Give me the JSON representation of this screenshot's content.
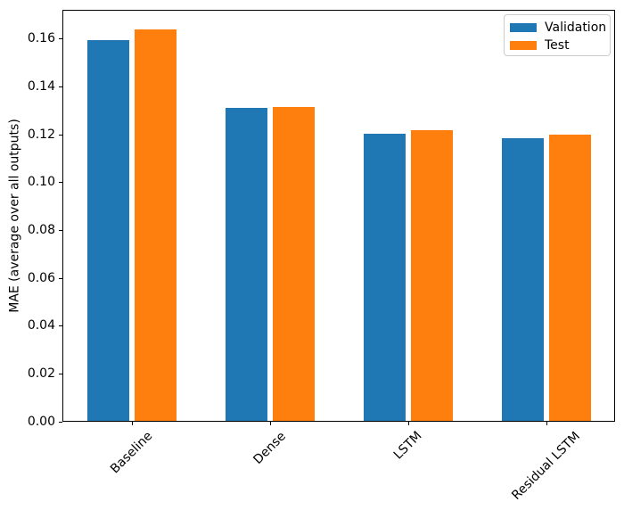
{
  "chart_data": {
    "type": "bar",
    "title": "",
    "xlabel": "",
    "ylabel": "MAE (average over all outputs)",
    "categories": [
      "Baseline",
      "Dense",
      "LSTM",
      "Residual LSTM"
    ],
    "series": [
      {
        "name": "Validation",
        "color": "#1f77b4",
        "values": [
          0.1595,
          0.1313,
          0.1205,
          0.1185
        ]
      },
      {
        "name": "Test",
        "color": "#ff7f0e",
        "values": [
          0.164,
          0.1316,
          0.1219,
          0.1199
        ]
      }
    ],
    "ylim": [
      0,
      0.1722
    ],
    "yticks": [
      0,
      0.02,
      0.04,
      0.06,
      0.08,
      0.1,
      0.12,
      0.14,
      0.16
    ],
    "ytick_decimals": 2,
    "xtick_rotation_deg": 45,
    "grid": false,
    "legend": {
      "position": "upper right",
      "entries": [
        "Validation",
        "Test"
      ]
    },
    "axis_color": "#000000",
    "background": "#ffffff"
  }
}
